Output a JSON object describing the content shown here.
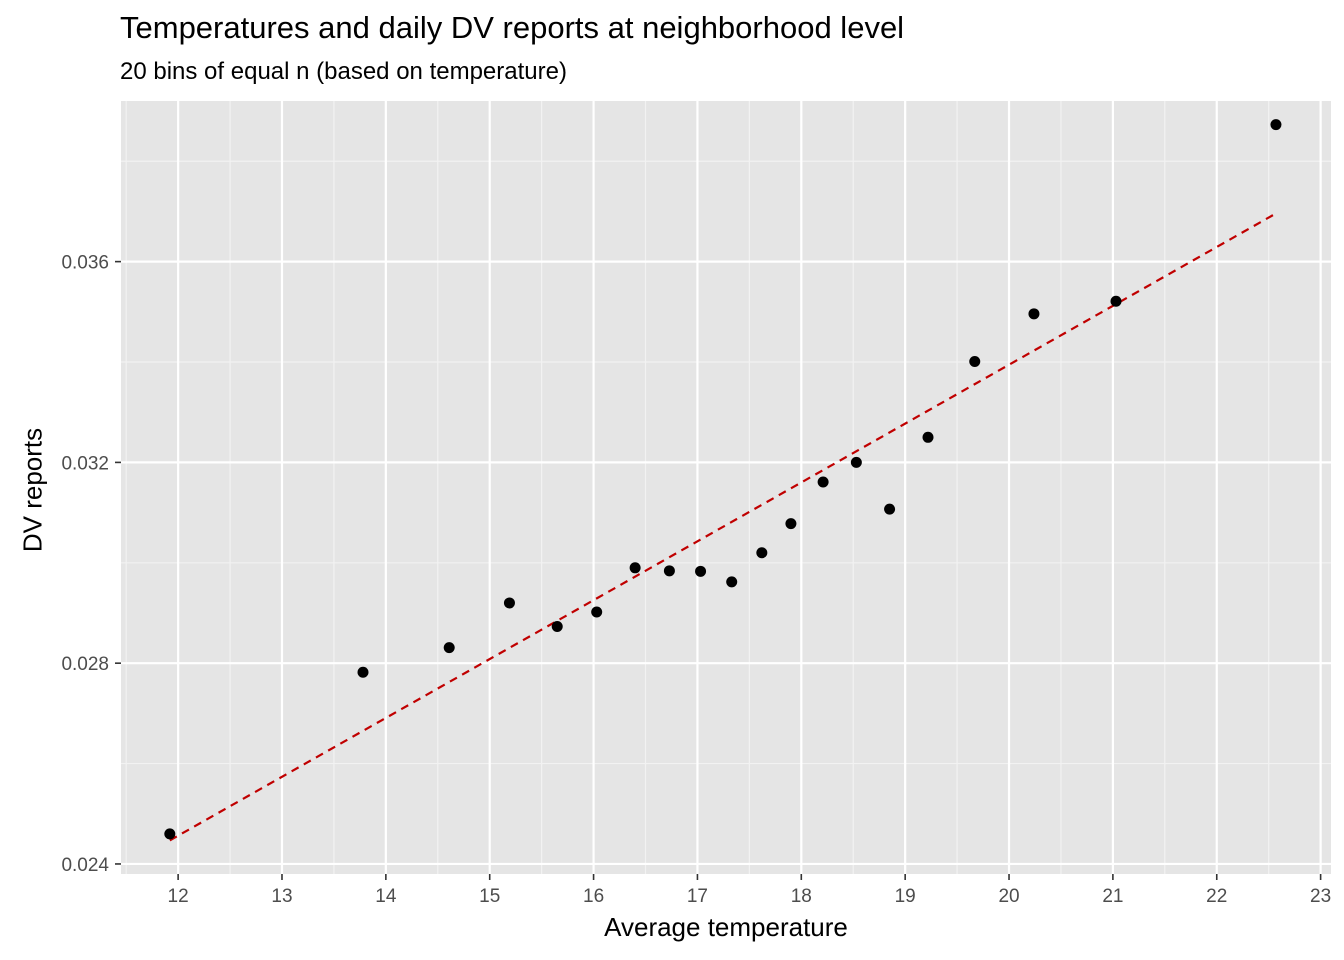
{
  "chart_data": {
    "type": "scatter",
    "title": "Temperatures and daily DV reports at neighborhood level",
    "subtitle": "20 bins of equal n (based on temperature)",
    "xlabel": "Average temperature",
    "ylabel": "DV reports",
    "xlim": [
      11.45,
      23.1
    ],
    "ylim": [
      0.0238,
      0.0392
    ],
    "x_ticks": [
      12,
      13,
      14,
      15,
      16,
      17,
      18,
      19,
      20,
      21,
      22,
      23
    ],
    "y_ticks": [
      0.024,
      0.028,
      0.032,
      0.036
    ],
    "y_tick_labels": [
      "0.024",
      "0.028",
      "0.032",
      "0.036"
    ],
    "grid": true,
    "points": {
      "x": [
        11.92,
        13.78,
        14.61,
        15.19,
        15.65,
        16.03,
        16.4,
        16.73,
        17.03,
        17.33,
        17.62,
        17.9,
        18.21,
        18.53,
        18.85,
        19.22,
        19.67,
        20.24,
        21.03,
        22.57
      ],
      "y": [
        0.0246,
        0.02782,
        0.02831,
        0.0292,
        0.02873,
        0.02902,
        0.0299,
        0.02984,
        0.02983,
        0.02962,
        0.0302,
        0.03078,
        0.03161,
        0.032,
        0.03107,
        0.0325,
        0.03401,
        0.03496,
        0.03521,
        0.03873
      ],
      "color": "#000000"
    },
    "fit_line": {
      "style": "dashed",
      "color": "#c00000",
      "x": [
        11.92,
        22.57
      ],
      "y": [
        0.02447,
        0.03696
      ]
    }
  }
}
